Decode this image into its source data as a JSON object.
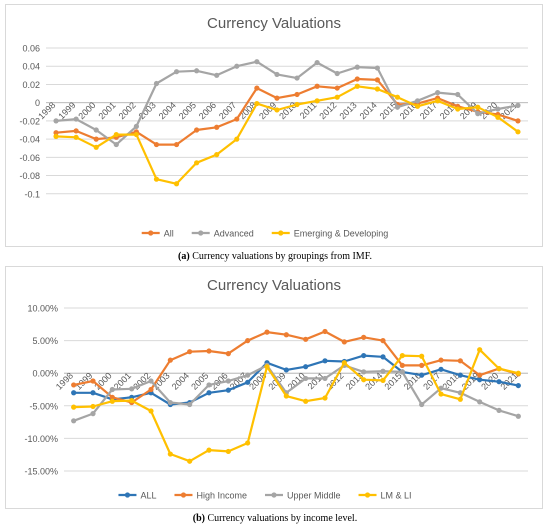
{
  "chart_data": [
    {
      "type": "line",
      "title": "Currency Valuations",
      "caption_label": "(a)",
      "caption_text": "Currency valuations by groupings from IMF.",
      "ylim": [
        -0.12,
        0.06
      ],
      "yticks": [
        -0.1,
        -0.08,
        -0.06,
        -0.04,
        -0.02,
        0,
        0.02,
        0.04,
        0.06
      ],
      "ytick_labels": [
        "-0.1",
        "-0.08",
        "-0.06",
        "-0.04",
        "-0.02",
        "0",
        "0.02",
        "0.04",
        "0.06"
      ],
      "categories": [
        "1998",
        "1999",
        "2000",
        "2001",
        "2002",
        "2003",
        "2004",
        "2005",
        "2006",
        "2007",
        "2008",
        "2009",
        "2010",
        "2011",
        "2012",
        "2013",
        "2014",
        "2015",
        "2016",
        "2017",
        "2018",
        "2019",
        "2020",
        "2021"
      ],
      "grid": true,
      "legend_position": "bottom",
      "series": [
        {
          "name": "All",
          "color": "#ED7D31",
          "values": [
            -0.033,
            -0.031,
            -0.04,
            -0.038,
            -0.032,
            -0.046,
            -0.046,
            -0.03,
            -0.027,
            -0.018,
            0.016,
            0.005,
            0.009,
            0.018,
            0.016,
            0.026,
            0.025,
            -0.002,
            -0.001,
            0.005,
            -0.004,
            -0.01,
            -0.013,
            -0.02
          ]
        },
        {
          "name": "Advanced",
          "color": "#A5A5A5",
          "values": [
            -0.02,
            -0.018,
            -0.03,
            -0.046,
            -0.026,
            0.021,
            0.034,
            0.035,
            0.03,
            0.04,
            0.045,
            0.031,
            0.027,
            0.044,
            0.032,
            0.039,
            0.038,
            -0.005,
            0.002,
            0.011,
            0.009,
            -0.012,
            -0.007,
            -0.003
          ]
        },
        {
          "name": "Emerging & Developing",
          "color": "#FFC000",
          "values": [
            -0.037,
            -0.038,
            -0.049,
            -0.035,
            -0.035,
            -0.084,
            -0.089,
            -0.066,
            -0.057,
            -0.04,
            -0.001,
            -0.008,
            -0.002,
            0.002,
            0.006,
            0.018,
            0.015,
            0.006,
            -0.004,
            0.002,
            -0.007,
            -0.005,
            -0.016,
            -0.032
          ]
        }
      ]
    },
    {
      "type": "line",
      "title": "Currency Valuations",
      "caption_label": "(b)",
      "caption_text": "Currency valuations by income level.",
      "ylim": [
        -0.15,
        0.1
      ],
      "yticks": [
        -0.15,
        -0.1,
        -0.05,
        0,
        0.05,
        0.1
      ],
      "ytick_labels": [
        "-15.00%",
        "-10.00%",
        "-5.00%",
        "0.00%",
        "5.00%",
        "10.00%"
      ],
      "categories": [
        "1998",
        "1999",
        "2000",
        "2001",
        "2002",
        "2003",
        "2004",
        "2005",
        "2006",
        "2007",
        "2008",
        "2009",
        "2010",
        "2011",
        "2012",
        "2013",
        "2014",
        "2015",
        "2016",
        "2017",
        "2018",
        "2019",
        "2020",
        "2021"
      ],
      "grid": true,
      "legend_position": "bottom",
      "series": [
        {
          "name": "ALL",
          "color": "#2E75B6",
          "values": [
            -0.03,
            -0.03,
            -0.04,
            -0.037,
            -0.03,
            -0.048,
            -0.045,
            -0.03,
            -0.026,
            -0.014,
            0.016,
            0.005,
            0.01,
            0.019,
            0.018,
            0.027,
            0.025,
            0.002,
            -0.003,
            0.006,
            -0.003,
            -0.01,
            -0.013,
            -0.019
          ]
        },
        {
          "name": "High Income",
          "color": "#ED7D31",
          "values": [
            -0.018,
            -0.012,
            -0.037,
            -0.045,
            -0.025,
            0.02,
            0.033,
            0.034,
            0.03,
            0.05,
            0.063,
            0.059,
            0.052,
            0.064,
            0.048,
            0.055,
            0.05,
            0.012,
            0.012,
            0.02,
            0.019,
            -0.003,
            0.007,
            -0.001
          ]
        },
        {
          "name": "Upper Middle",
          "color": "#A5A5A5",
          "values": [
            -0.073,
            -0.062,
            -0.025,
            -0.024,
            -0.012,
            -0.045,
            -0.048,
            -0.018,
            -0.012,
            -0.003,
            0.012,
            -0.03,
            -0.008,
            -0.008,
            0.012,
            0.002,
            0.003,
            0.002,
            -0.048,
            -0.023,
            -0.03,
            -0.044,
            -0.057,
            -0.066
          ]
        },
        {
          "name": "LM & LI",
          "color": "#FFC000",
          "values": [
            -0.052,
            -0.051,
            -0.043,
            -0.042,
            -0.058,
            -0.124,
            -0.135,
            -0.118,
            -0.12,
            -0.107,
            0.01,
            -0.035,
            -0.043,
            -0.038,
            0.016,
            -0.01,
            -0.011,
            0.027,
            0.026,
            -0.032,
            -0.04,
            0.036,
            0.007,
            0.0
          ]
        }
      ]
    }
  ]
}
